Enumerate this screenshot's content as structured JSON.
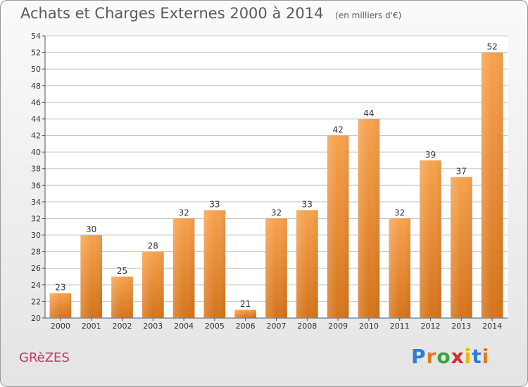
{
  "header": {
    "title": "Achats et Charges Externes 2000 à 2014",
    "unit": "(en milliers d'€)"
  },
  "footer": {
    "place": "GRèZES",
    "logo_letters": [
      {
        "ch": "P",
        "color": "#2a7fd4"
      },
      {
        "ch": "r",
        "color": "#e07a1c"
      },
      {
        "ch": "o",
        "color": "#3aa33a"
      },
      {
        "ch": "x",
        "color": "#d12e2e"
      },
      {
        "ch": "i",
        "color": "#e6b800"
      },
      {
        "ch": "t",
        "color": "#2a7fd4"
      },
      {
        "ch": "i",
        "color": "#e07a1c"
      }
    ]
  },
  "colors": {
    "bar_top": "#f7a24e",
    "bar_bottom": "#d5741c",
    "grid": "#c8c8c8"
  },
  "chart_data": {
    "type": "bar",
    "title": "Achats et Charges Externes 2000 à 2014",
    "subtitle": "(en milliers d'€)",
    "xlabel": "",
    "ylabel": "",
    "categories": [
      "2000",
      "2001",
      "2002",
      "2003",
      "2004",
      "2005",
      "2006",
      "2007",
      "2008",
      "2009",
      "2010",
      "2011",
      "2012",
      "2013",
      "2014"
    ],
    "values": [
      23,
      30,
      25,
      28,
      32,
      33,
      21,
      32,
      33,
      42,
      44,
      32,
      39,
      37,
      52
    ],
    "ylim": [
      20,
      54
    ],
    "yticks": [
      20,
      22,
      24,
      26,
      28,
      30,
      32,
      34,
      36,
      38,
      40,
      42,
      44,
      46,
      48,
      50,
      52,
      54
    ],
    "grid": true,
    "legend": "none"
  }
}
